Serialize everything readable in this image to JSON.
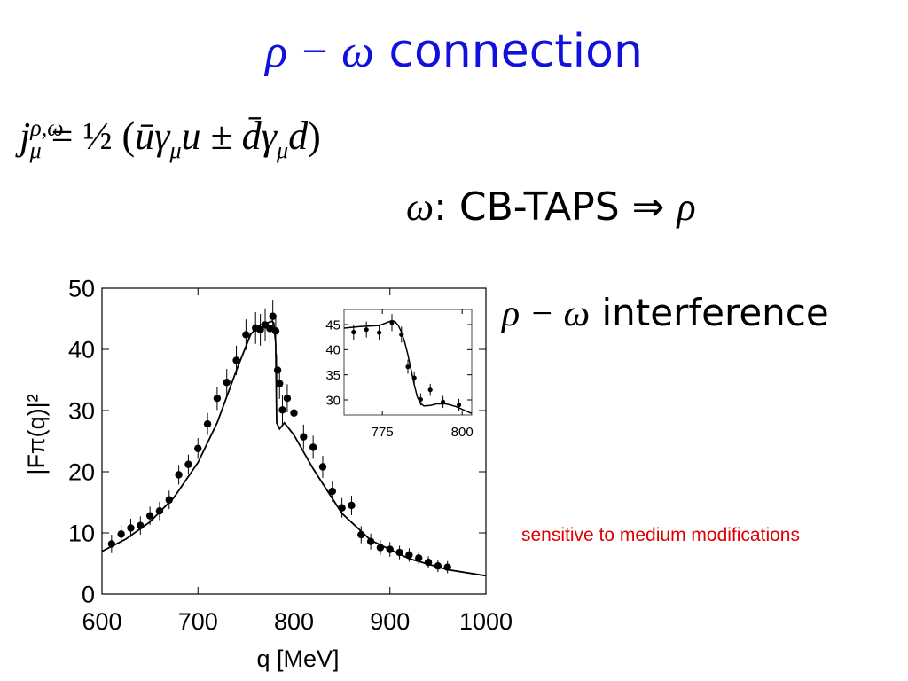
{
  "title": {
    "math": "ρ − ω",
    "text": " connection"
  },
  "equation": {
    "lhs": "j",
    "sup": "ρ,ω",
    "sub": "μ",
    "mid": " = ½ (",
    "body": "ūγ",
    "mu1": "μ",
    "u": "u ± ",
    "dbar": "d̄γ",
    "mu2": "μ",
    "d": "d",
    "close": ")"
  },
  "subtitle": {
    "omega": "ω",
    "text": ":  CB-TAPS ⇒ ",
    "rho": "ρ"
  },
  "interference": {
    "math": "ρ − ω",
    "text": " interference"
  },
  "note": "sensitive to medium modifications",
  "chart_data": [
    {
      "type": "scatter",
      "title": "",
      "xlabel": "q  [MeV]",
      "ylabel": "|Fπ(q)|²",
      "xlim": [
        600,
        1000
      ],
      "ylim": [
        0,
        50
      ],
      "xticks": [
        600,
        700,
        800,
        900,
        1000
      ],
      "yticks": [
        0,
        10,
        20,
        30,
        40,
        50
      ],
      "grid": false,
      "data_points": {
        "x": [
          610,
          620,
          630,
          640,
          650,
          660,
          670,
          680,
          690,
          700,
          710,
          720,
          730,
          740,
          750,
          760,
          765,
          770,
          775,
          778,
          781,
          783,
          785,
          788,
          793,
          800,
          810,
          820,
          830,
          840,
          850,
          860,
          870,
          880,
          890,
          900,
          910,
          920,
          930,
          940,
          950,
          960
        ],
        "y": [
          8.2,
          9.8,
          10.8,
          11.2,
          12.8,
          13.6,
          15.4,
          19.5,
          21.2,
          23.8,
          27.8,
          32.0,
          34.6,
          38.2,
          42.4,
          43.5,
          43.2,
          44.0,
          43.4,
          45.4,
          43.0,
          36.6,
          34.4,
          30.1,
          32.0,
          29.6,
          25.7,
          24.0,
          20.8,
          16.8,
          14.1,
          14.5,
          9.7,
          8.6,
          7.6,
          7.3,
          6.8,
          6.4,
          5.9,
          5.2,
          4.6,
          4.4
        ],
        "yerr": [
          1.5,
          1.5,
          1.5,
          1.5,
          1.5,
          1.5,
          1.5,
          1.6,
          1.6,
          1.7,
          1.8,
          1.9,
          2.2,
          2.4,
          2.5,
          2.6,
          2.6,
          2.7,
          2.7,
          2.7,
          2.7,
          2.6,
          2.5,
          2.4,
          2.3,
          2.2,
          2.0,
          1.9,
          1.8,
          1.7,
          1.6,
          1.6,
          1.4,
          1.3,
          1.2,
          1.2,
          1.1,
          1.1,
          1.0,
          1.0,
          1.0,
          1.0
        ]
      },
      "fit_curve": {
        "x": [
          600,
          625,
          650,
          675,
          700,
          720,
          740,
          755,
          765,
          772,
          777,
          779,
          781,
          782,
          785,
          790,
          800,
          820,
          850,
          880,
          920,
          960,
          1000
        ],
        "y": [
          7.0,
          9.0,
          11.8,
          15.8,
          21.5,
          28.0,
          36.5,
          42.5,
          44.0,
          44.3,
          44.6,
          44.3,
          41.0,
          28.0,
          27.0,
          28.0,
          26.0,
          20.5,
          13.2,
          8.8,
          5.8,
          4.0,
          3.0
        ]
      }
    },
    {
      "type": "scatter",
      "title": "inset",
      "xlim": [
        763,
        803
      ],
      "ylim": [
        27,
        48
      ],
      "xticks": [
        775,
        800
      ],
      "yticks": [
        30,
        35,
        40,
        45
      ],
      "data_points": {
        "x": [
          766,
          770,
          774,
          778,
          781,
          783,
          785,
          787,
          790,
          794,
          799
        ],
        "y": [
          43.5,
          44.0,
          43.4,
          45.4,
          43.0,
          36.6,
          34.4,
          30.1,
          32.0,
          29.6,
          29.0
        ],
        "yerr": [
          1.5,
          1.6,
          1.6,
          1.7,
          1.6,
          1.4,
          1.3,
          1.2,
          1.2,
          1.2,
          1.2
        ]
      },
      "fit_curve": {
        "x": [
          763,
          768,
          774,
          778,
          779,
          780,
          781,
          782,
          783,
          784,
          785,
          786,
          787,
          788,
          790,
          792,
          795,
          798,
          803
        ],
        "y": [
          44.3,
          44.6,
          44.8,
          45.8,
          45.6,
          44.8,
          43.5,
          41.5,
          39.0,
          36.0,
          33.0,
          30.5,
          29.3,
          28.8,
          28.9,
          29.2,
          29.2,
          28.7,
          27.3
        ]
      }
    }
  ]
}
